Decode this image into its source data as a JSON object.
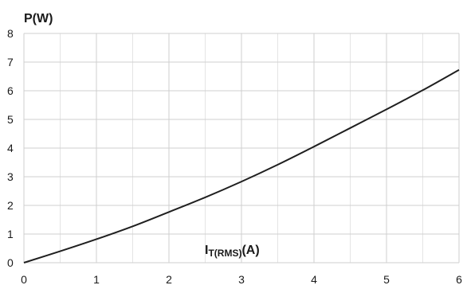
{
  "chart_data": {
    "type": "line",
    "ylabel": "P(W)",
    "xlabel": {
      "main": "I",
      "sub": "T(RMS)",
      "unit": "(A)"
    },
    "xlim": [
      0,
      6
    ],
    "ylim": [
      0,
      8
    ],
    "x_ticks": [
      "0",
      "1",
      "2",
      "3",
      "4",
      "5",
      "6"
    ],
    "y_ticks": [
      "0",
      "1",
      "2",
      "3",
      "4",
      "5",
      "6",
      "7",
      "8"
    ],
    "grid": true,
    "series": [
      {
        "x": [
          0,
          0.5,
          1,
          1.5,
          2,
          2.5,
          3,
          3.5,
          4,
          4.5,
          5,
          5.5,
          6
        ],
        "values": [
          0,
          0.4,
          0.82,
          1.27,
          1.77,
          2.28,
          2.83,
          3.42,
          4.05,
          4.7,
          5.35,
          6.02,
          6.73
        ]
      }
    ]
  }
}
